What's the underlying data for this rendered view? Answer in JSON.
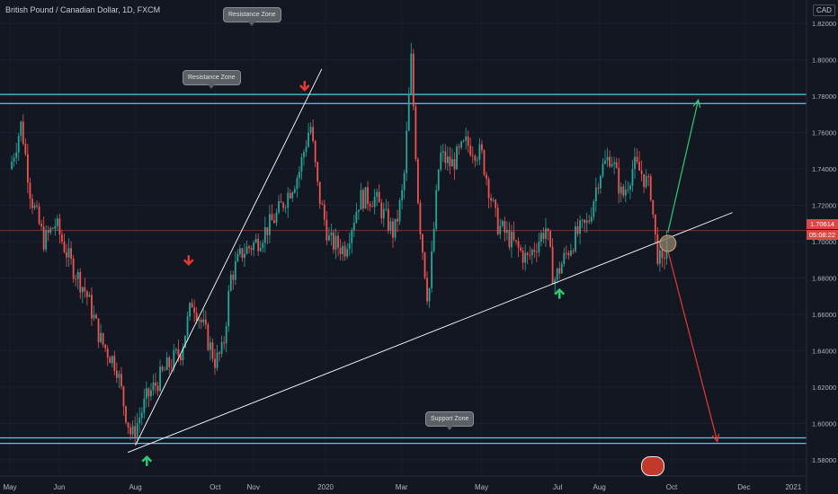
{
  "header": {
    "title": "British Pound / Canadian Dollar, 1D, FXCM",
    "currency": "CAD"
  },
  "price_badge": {
    "value": "1.70614",
    "countdown": "05:08:22"
  },
  "annotations": {
    "resistance_label_top": "Resistance Zone",
    "resistance_label": "Resistance Zone",
    "support_label": "Support Zone"
  },
  "colors": {
    "background": "#131722",
    "up": "#26a69a",
    "down": "#ef5350",
    "zone": "#4dd0e1",
    "trendline": "#ffffff",
    "bull_arrow": "#2ecc71",
    "bear_arrow": "#e53935"
  },
  "chart_data": {
    "type": "candlestick",
    "title": "British Pound / Canadian Dollar, 1D, FXCM",
    "y_axis": {
      "ticks": [
        1.58,
        1.6,
        1.62,
        1.64,
        1.66,
        1.68,
        1.7,
        1.72,
        1.74,
        1.76,
        1.78,
        1.8,
        1.82
      ],
      "tick_labels": [
        "1.58000",
        "1.60000",
        "1.62000",
        "1.64000",
        "1.66000",
        "1.68000",
        "1.70000",
        "1.72000",
        "1.74000",
        "1.76000",
        "1.78000",
        "1.80000",
        "1.82000"
      ],
      "range": [
        1.572,
        1.829
      ]
    },
    "x_axis": {
      "labels": [
        "May",
        "Jun",
        "Aug",
        "Oct",
        "Nov",
        "2020",
        "Mar",
        "May",
        "Jul",
        "Aug",
        "Oct",
        "Dec",
        "2021"
      ],
      "label_positions": [
        0,
        1.3,
        3.3,
        5.4,
        6.4,
        8.3,
        10.3,
        12.4,
        14.4,
        15.5,
        17.4,
        19.3,
        20.6
      ]
    },
    "price_path": [
      [
        0,
        1.74
      ],
      [
        0.3,
        1.765
      ],
      [
        0.55,
        1.725
      ],
      [
        0.9,
        1.7
      ],
      [
        1.2,
        1.71
      ],
      [
        1.6,
        1.688
      ],
      [
        2.0,
        1.672
      ],
      [
        2.4,
        1.645
      ],
      [
        2.8,
        1.632
      ],
      [
        3.0,
        1.61
      ],
      [
        3.2,
        1.592
      ],
      [
        3.6,
        1.614
      ],
      [
        4.1,
        1.63
      ],
      [
        4.5,
        1.64
      ],
      [
        4.8,
        1.668
      ],
      [
        5.1,
        1.652
      ],
      [
        5.4,
        1.634
      ],
      [
        5.6,
        1.64
      ],
      [
        5.8,
        1.68
      ],
      [
        6.1,
        1.694
      ],
      [
        6.5,
        1.7
      ],
      [
        7.0,
        1.714
      ],
      [
        7.6,
        1.738
      ],
      [
        7.9,
        1.765
      ],
      [
        8.1,
        1.728
      ],
      [
        8.4,
        1.7
      ],
      [
        8.8,
        1.696
      ],
      [
        9.2,
        1.724
      ],
      [
        9.6,
        1.724
      ],
      [
        10.1,
        1.704
      ],
      [
        10.35,
        1.73
      ],
      [
        10.55,
        1.8
      ],
      [
        10.75,
        1.716
      ],
      [
        11.0,
        1.666
      ],
      [
        11.3,
        1.748
      ],
      [
        11.6,
        1.742
      ],
      [
        12.0,
        1.754
      ],
      [
        12.4,
        1.748
      ],
      [
        12.8,
        1.71
      ],
      [
        13.2,
        1.7
      ],
      [
        13.6,
        1.69
      ],
      [
        14.1,
        1.708
      ],
      [
        14.3,
        1.678
      ],
      [
        14.6,
        1.692
      ],
      [
        14.9,
        1.704
      ],
      [
        15.2,
        1.71
      ],
      [
        15.5,
        1.738
      ],
      [
        15.8,
        1.748
      ],
      [
        16.1,
        1.724
      ],
      [
        16.4,
        1.742
      ],
      [
        16.6,
        1.738
      ],
      [
        16.85,
        1.728
      ],
      [
        17.0,
        1.695
      ],
      [
        17.15,
        1.686
      ],
      [
        17.3,
        1.705
      ]
    ],
    "resistance_zone": [
      1.776,
      1.781
    ],
    "support_zone": [
      1.589,
      1.592
    ],
    "trendlines": [
      {
        "from": [
          3.3,
          1.588
        ],
        "to": [
          8.2,
          1.795
        ]
      },
      {
        "from": [
          3.1,
          1.584
        ],
        "to": [
          19.0,
          1.716
        ]
      }
    ],
    "projection_up": {
      "from": [
        17.3,
        1.705
      ],
      "to": [
        18.1,
        1.778
      ]
    },
    "projection_down": {
      "from": [
        17.3,
        1.695
      ],
      "to": [
        18.6,
        1.59
      ]
    },
    "bear_arrows_at": [
      [
        4.7,
        1.688
      ],
      [
        7.75,
        1.784
      ]
    ],
    "bull_arrows_at": [
      [
        3.6,
        1.581
      ],
      [
        14.45,
        1.673
      ]
    ],
    "current_price": 1.70614
  }
}
